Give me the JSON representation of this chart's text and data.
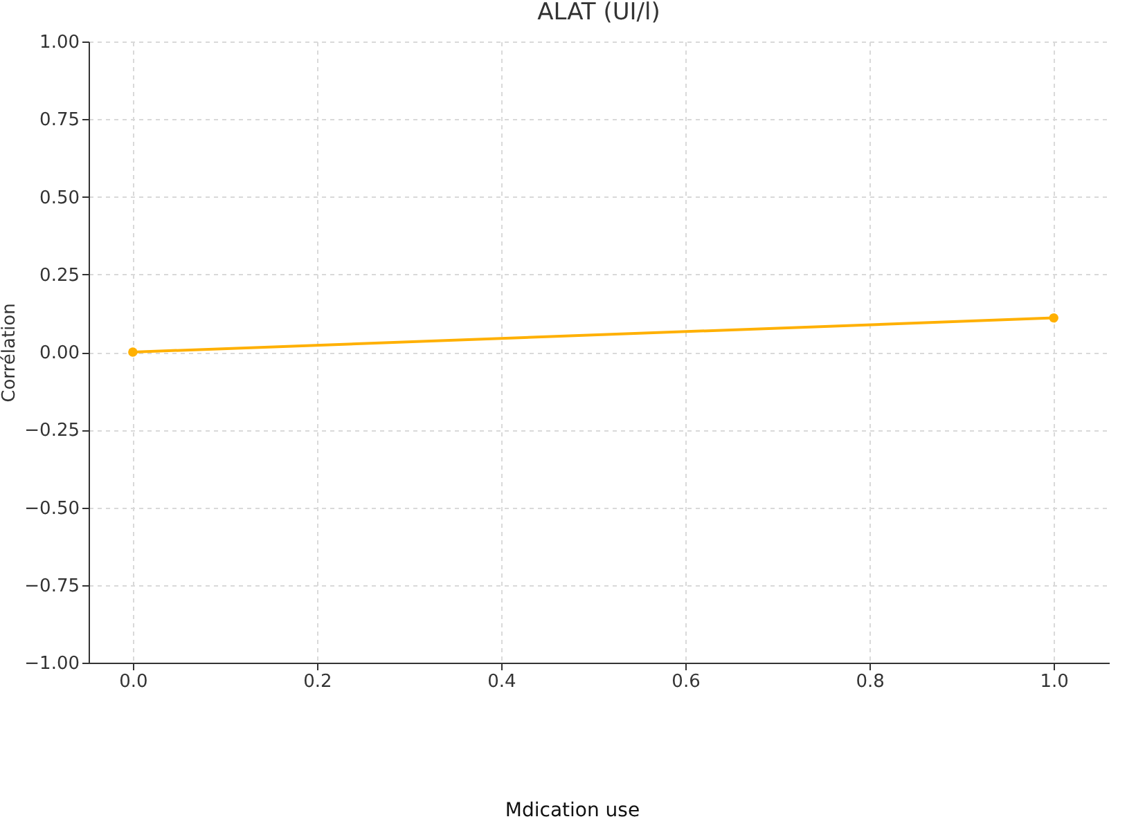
{
  "chart_data": {
    "type": "line",
    "title": "ALAT (UI/l)",
    "ylabel": "Corrélation",
    "annotations": [
      "Mdication use"
    ],
    "x": [
      0.0,
      1.0
    ],
    "series": [
      {
        "color": "#ffb000",
        "values": [
          0.0,
          0.11
        ]
      }
    ],
    "xlim": [
      -0.048,
      1.06
    ],
    "xticks": [
      {
        "value": 0,
        "label": "0.0"
      },
      {
        "value": 0.2,
        "label": "0.2"
      },
      {
        "value": 0.4,
        "label": "0.4"
      },
      {
        "value": 0.6,
        "label": "0.6"
      },
      {
        "value": 0.8,
        "label": "0.8"
      },
      {
        "value": 1,
        "label": "1.0"
      }
    ],
    "ylim": [
      -1.0,
      1.0
    ],
    "yticks": [
      {
        "value": -1,
        "label": "−1.00"
      },
      {
        "value": -0.75,
        "label": "−0.75"
      },
      {
        "value": -0.5,
        "label": "−0.50"
      },
      {
        "value": -0.25,
        "label": "−0.25"
      },
      {
        "value": 0,
        "label": "0.00"
      },
      {
        "value": 0.25,
        "label": "0.25"
      },
      {
        "value": 0.5,
        "label": "0.50"
      },
      {
        "value": 0.75,
        "label": "0.75"
      },
      {
        "value": 1,
        "label": "1.00"
      }
    ],
    "grid": true,
    "marker": "circle",
    "line_style": "solid"
  }
}
